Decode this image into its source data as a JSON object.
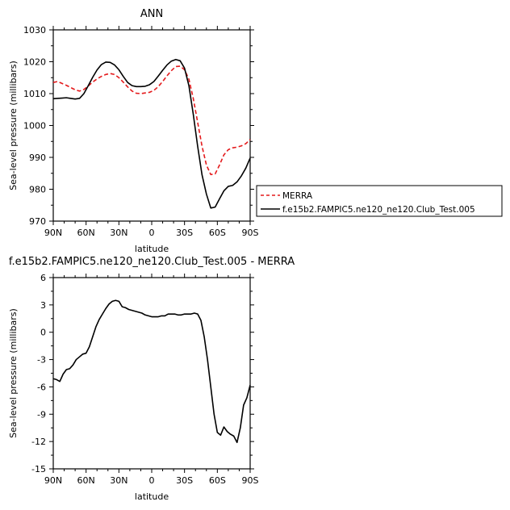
{
  "chart_data": [
    {
      "type": "line",
      "title": "ANN",
      "xlabel": "latitude",
      "ylabel": "Sea-level pressure (millibars)",
      "xlim": [
        90,
        -90
      ],
      "ylim": [
        970,
        1030
      ],
      "xticks": [
        90,
        60,
        30,
        0,
        -30,
        -60,
        -90
      ],
      "xtick_labels": [
        "90N",
        "60N",
        "30N",
        "0",
        "30S",
        "60S",
        "90S"
      ],
      "yticks": [
        970,
        980,
        990,
        1000,
        1010,
        1020,
        1030
      ],
      "ytick_labels": [
        "970",
        "980",
        "990",
        "1000",
        "1010",
        "1020",
        "1030"
      ],
      "legend_placement": "right",
      "series": [
        {
          "name": "MERRA",
          "color": "#e41a1c",
          "style": "dashed",
          "x": [
            90,
            86,
            82,
            78,
            74,
            70,
            66,
            62,
            58,
            54,
            50,
            46,
            42,
            38,
            34,
            30,
            26,
            22,
            18,
            14,
            10,
            6,
            2,
            -2,
            -6,
            -10,
            -14,
            -18,
            -22,
            -26,
            -30,
            -34,
            -38,
            -42,
            -46,
            -50,
            -54,
            -58,
            -62,
            -66,
            -70,
            -74,
            -78,
            -82,
            -86,
            -90
          ],
          "y": [
            1013.5,
            1013.8,
            1013.2,
            1012.6,
            1011.9,
            1011.2,
            1010.8,
            1011.3,
            1012.4,
            1013.6,
            1014.6,
            1015.4,
            1016.0,
            1016.3,
            1016.0,
            1015.0,
            1013.6,
            1012.1,
            1010.8,
            1010.1,
            1010.0,
            1010.2,
            1010.4,
            1011.0,
            1012.2,
            1013.8,
            1015.6,
            1017.2,
            1018.5,
            1018.6,
            1017.5,
            1014.5,
            1008.5,
            1001.0,
            993.5,
            987.6,
            984.6,
            984.8,
            987.6,
            990.8,
            992.4,
            993.0,
            993.2,
            993.6,
            994.3,
            995.6
          ]
        },
        {
          "name": "f.e15b2.FAMPIC5.ne120_ne120.Club_Test.005",
          "color": "#000000",
          "style": "solid",
          "x": [
            90,
            86,
            82,
            78,
            74,
            70,
            66,
            62,
            58,
            54,
            50,
            46,
            42,
            38,
            34,
            30,
            26,
            22,
            18,
            14,
            10,
            6,
            2,
            -2,
            -6,
            -10,
            -14,
            -18,
            -22,
            -26,
            -30,
            -34,
            -38,
            -42,
            -46,
            -50,
            -54,
            -58,
            -62,
            -66,
            -70,
            -74,
            -78,
            -82,
            -86,
            -90
          ],
          "y": [
            1008.4,
            1008.5,
            1008.6,
            1008.7,
            1008.5,
            1008.3,
            1008.5,
            1010.0,
            1012.5,
            1015.1,
            1017.4,
            1019.1,
            1019.9,
            1019.8,
            1019.0,
            1017.5,
            1015.4,
            1013.5,
            1012.5,
            1012.2,
            1012.2,
            1012.3,
            1012.8,
            1013.8,
            1015.5,
            1017.3,
            1019.0,
            1020.2,
            1020.7,
            1020.3,
            1018.0,
            1012.5,
            1003.5,
            993.5,
            984.5,
            978.5,
            974.1,
            974.4,
            977.0,
            979.5,
            980.9,
            981.2,
            982.3,
            984.2,
            986.6,
            989.8
          ]
        }
      ]
    },
    {
      "type": "line",
      "title": "f.e15b2.FAMPIC5.ne120_ne120.Club_Test.005 - MERRA",
      "xlabel": "latitude",
      "ylabel": "Sea-level pressure (millibars)",
      "xlim": [
        90,
        -90
      ],
      "ylim": [
        -15,
        6
      ],
      "xticks": [
        90,
        60,
        30,
        0,
        -30,
        -60,
        -90
      ],
      "xtick_labels": [
        "90N",
        "60N",
        "30N",
        "0",
        "30S",
        "60S",
        "90S"
      ],
      "yticks": [
        -15,
        -12,
        -9,
        -6,
        -3,
        0,
        3,
        6
      ],
      "ytick_labels": [
        "-15",
        "-12",
        "-9",
        "-6",
        "-3",
        "0",
        "3",
        "6"
      ],
      "series": [
        {
          "color": "#000000",
          "style": "solid",
          "x": [
            90,
            87,
            84,
            81,
            78,
            75,
            72,
            69,
            66,
            63,
            60,
            57,
            54,
            51,
            48,
            45,
            42,
            39,
            36,
            33,
            30,
            27,
            24,
            21,
            18,
            15,
            12,
            9,
            6,
            3,
            0,
            -3,
            -6,
            -9,
            -12,
            -15,
            -18,
            -21,
            -24,
            -27,
            -30,
            -33,
            -36,
            -39,
            -42,
            -45,
            -48,
            -51,
            -54,
            -57,
            -60,
            -63,
            -66,
            -69,
            -72,
            -75,
            -78,
            -81,
            -84,
            -87,
            -90
          ],
          "y": [
            -5.1,
            -5.2,
            -5.4,
            -4.6,
            -4.1,
            -4.0,
            -3.6,
            -3.0,
            -2.7,
            -2.4,
            -2.3,
            -1.6,
            -0.5,
            0.6,
            1.4,
            2.0,
            2.6,
            3.1,
            3.4,
            3.5,
            3.4,
            2.8,
            2.7,
            2.5,
            2.4,
            2.3,
            2.2,
            2.1,
            1.9,
            1.8,
            1.7,
            1.7,
            1.7,
            1.8,
            1.8,
            2.0,
            2.0,
            2.0,
            1.9,
            1.9,
            2.0,
            2.0,
            2.0,
            2.1,
            2.0,
            1.3,
            -0.5,
            -3.0,
            -6.0,
            -9.0,
            -11.0,
            -11.3,
            -10.4,
            -10.9,
            -11.2,
            -11.4,
            -12.1,
            -10.5,
            -8.0,
            -7.2,
            -5.8
          ]
        }
      ]
    }
  ]
}
